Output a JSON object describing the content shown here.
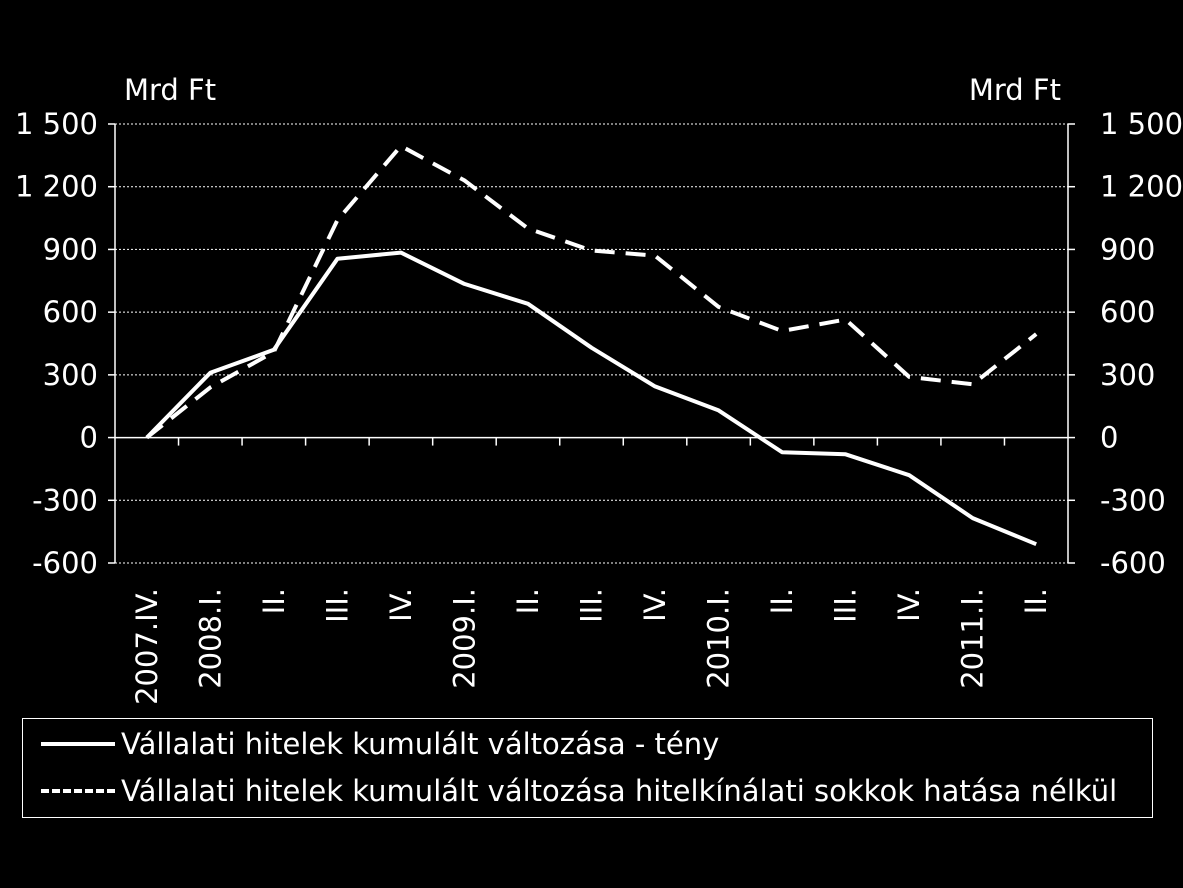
{
  "chart_data": {
    "type": "line",
    "left_unit": "Mrd Ft",
    "right_unit": "Mrd Ft",
    "ylim": [
      -600,
      1500
    ],
    "yticks": [
      "-600",
      "-300",
      "0",
      "300",
      "600",
      "900",
      "1 200",
      "1 500"
    ],
    "ytick_values": [
      -600,
      -300,
      0,
      300,
      600,
      900,
      1200,
      1500
    ],
    "categories": [
      "2007.IV.",
      "2008.I.",
      "II.",
      "III.",
      "IV.",
      "2009.I.",
      "II.",
      "III.",
      "IV.",
      "2010.I.",
      "II.",
      "III.",
      "IV.",
      "2011.I.",
      "II."
    ],
    "grid": true,
    "series": [
      {
        "name": "Vállalati hitelek kumulált változása - tény",
        "style": "solid",
        "color": "#ffffff",
        "values": [
          0,
          310,
          420,
          855,
          885,
          735,
          640,
          430,
          245,
          130,
          -70,
          -80,
          -180,
          -385,
          -510
        ]
      },
      {
        "name": "Vállalati hitelek kumulált változása hitelkínálati sokkok hatása nélkül",
        "style": "dashed",
        "color": "#ffffff",
        "values": [
          0,
          240,
          410,
          1040,
          1395,
          1230,
          1000,
          895,
          870,
          625,
          510,
          565,
          290,
          255,
          495
        ]
      }
    ]
  }
}
